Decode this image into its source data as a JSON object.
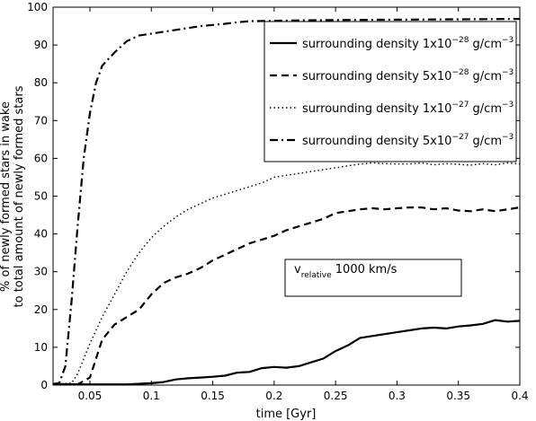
{
  "chart_data": {
    "type": "line",
    "xlabel": "time [Gyr]",
    "ylabel_line1": "% of newly formed stars in wake",
    "ylabel_line2": "to total amount of newly formed stars",
    "xlim": [
      0.02,
      0.4
    ],
    "ylim": [
      0,
      100
    ],
    "xticks": [
      "0.05",
      "0.1",
      "0.15",
      "0.2",
      "0.25",
      "0.3",
      "0.35",
      "0.4"
    ],
    "yticks": [
      "0",
      "10",
      "20",
      "30",
      "40",
      "50",
      "60",
      "70",
      "80",
      "90",
      "100"
    ],
    "legend_position": "top-right",
    "annotation": {
      "v": "v",
      "sub": "relative",
      "text": " 1000 km/s"
    },
    "series": [
      {
        "legend_prefix": "surrounding density 1x10",
        "exponent": "−28",
        "unit": " g/cm",
        "unit_exp": "−3",
        "style": "solid",
        "points": [
          [
            0.02,
            0.3
          ],
          [
            0.05,
            0.2
          ],
          [
            0.08,
            0.2
          ],
          [
            0.1,
            0.5
          ],
          [
            0.11,
            0.8
          ],
          [
            0.12,
            1.5
          ],
          [
            0.13,
            1.8
          ],
          [
            0.14,
            2.0
          ],
          [
            0.15,
            2.2
          ],
          [
            0.16,
            2.5
          ],
          [
            0.17,
            3.3
          ],
          [
            0.18,
            3.5
          ],
          [
            0.19,
            4.5
          ],
          [
            0.2,
            4.8
          ],
          [
            0.21,
            4.6
          ],
          [
            0.22,
            5.0
          ],
          [
            0.23,
            6.0
          ],
          [
            0.24,
            7.0
          ],
          [
            0.25,
            9.0
          ],
          [
            0.26,
            10.5
          ],
          [
            0.27,
            12.5
          ],
          [
            0.28,
            13.0
          ],
          [
            0.29,
            13.5
          ],
          [
            0.3,
            14.0
          ],
          [
            0.31,
            14.5
          ],
          [
            0.32,
            15.0
          ],
          [
            0.33,
            15.2
          ],
          [
            0.34,
            15.0
          ],
          [
            0.35,
            15.5
          ],
          [
            0.36,
            15.8
          ],
          [
            0.37,
            16.2
          ],
          [
            0.38,
            17.2
          ],
          [
            0.39,
            16.8
          ],
          [
            0.4,
            17.0
          ]
        ]
      },
      {
        "legend_prefix": "surrounding density 5x10",
        "exponent": "−28",
        "unit": " g/cm",
        "unit_exp": "−3",
        "style": "dashed",
        "points": [
          [
            0.02,
            0.2
          ],
          [
            0.04,
            0.2
          ],
          [
            0.05,
            2.0
          ],
          [
            0.055,
            7.0
          ],
          [
            0.06,
            12.0
          ],
          [
            0.07,
            16.0
          ],
          [
            0.08,
            18.0
          ],
          [
            0.09,
            20.0
          ],
          [
            0.1,
            24.0
          ],
          [
            0.11,
            27.0
          ],
          [
            0.12,
            28.5
          ],
          [
            0.13,
            29.5
          ],
          [
            0.14,
            31.0
          ],
          [
            0.15,
            33.0
          ],
          [
            0.16,
            34.5
          ],
          [
            0.17,
            36.0
          ],
          [
            0.18,
            37.5
          ],
          [
            0.19,
            38.5
          ],
          [
            0.2,
            39.5
          ],
          [
            0.21,
            41.0
          ],
          [
            0.22,
            42.0
          ],
          [
            0.23,
            43.0
          ],
          [
            0.24,
            44.0
          ],
          [
            0.25,
            45.5
          ],
          [
            0.26,
            46.0
          ],
          [
            0.27,
            46.5
          ],
          [
            0.28,
            46.8
          ],
          [
            0.29,
            46.5
          ],
          [
            0.3,
            46.8
          ],
          [
            0.31,
            47.0
          ],
          [
            0.32,
            47.0
          ],
          [
            0.33,
            46.5
          ],
          [
            0.34,
            46.8
          ],
          [
            0.35,
            46.2
          ],
          [
            0.36,
            46.0
          ],
          [
            0.37,
            46.5
          ],
          [
            0.38,
            46.0
          ],
          [
            0.39,
            46.5
          ],
          [
            0.4,
            47.0
          ]
        ]
      },
      {
        "legend_prefix": "surrounding density 1x10",
        "exponent": "−27",
        "unit": " g/cm",
        "unit_exp": "−3",
        "style": "dotted",
        "points": [
          [
            0.02,
            0.2
          ],
          [
            0.035,
            0.5
          ],
          [
            0.04,
            3.0
          ],
          [
            0.05,
            11.0
          ],
          [
            0.06,
            18.0
          ],
          [
            0.07,
            24.0
          ],
          [
            0.08,
            30.0
          ],
          [
            0.09,
            35.0
          ],
          [
            0.1,
            39.0
          ],
          [
            0.11,
            42.0
          ],
          [
            0.12,
            44.5
          ],
          [
            0.13,
            46.5
          ],
          [
            0.14,
            48.0
          ],
          [
            0.15,
            49.5
          ],
          [
            0.16,
            50.5
          ],
          [
            0.17,
            51.5
          ],
          [
            0.18,
            52.5
          ],
          [
            0.19,
            53.5
          ],
          [
            0.2,
            55.0
          ],
          [
            0.21,
            55.5
          ],
          [
            0.22,
            56.0
          ],
          [
            0.23,
            56.5
          ],
          [
            0.24,
            57.0
          ],
          [
            0.25,
            57.5
          ],
          [
            0.26,
            58.0
          ],
          [
            0.27,
            58.5
          ],
          [
            0.28,
            58.8
          ],
          [
            0.29,
            58.6
          ],
          [
            0.3,
            58.5
          ],
          [
            0.31,
            58.5
          ],
          [
            0.32,
            58.8
          ],
          [
            0.33,
            58.3
          ],
          [
            0.34,
            58.6
          ],
          [
            0.35,
            58.4
          ],
          [
            0.36,
            58.2
          ],
          [
            0.37,
            58.6
          ],
          [
            0.38,
            58.3
          ],
          [
            0.39,
            58.8
          ],
          [
            0.4,
            58.5
          ]
        ]
      },
      {
        "legend_prefix": "surrounding density 5x10",
        "exponent": "−27",
        "unit": " g/cm",
        "unit_exp": "−3",
        "style": "dashdot",
        "points": [
          [
            0.02,
            0.3
          ],
          [
            0.025,
            0.5
          ],
          [
            0.03,
            5.0
          ],
          [
            0.035,
            22.0
          ],
          [
            0.04,
            42.0
          ],
          [
            0.045,
            60.0
          ],
          [
            0.05,
            72.0
          ],
          [
            0.055,
            80.0
          ],
          [
            0.06,
            84.5
          ],
          [
            0.07,
            88.0
          ],
          [
            0.08,
            91.0
          ],
          [
            0.09,
            92.5
          ],
          [
            0.1,
            93.0
          ],
          [
            0.11,
            93.5
          ],
          [
            0.12,
            94.0
          ],
          [
            0.13,
            94.5
          ],
          [
            0.14,
            95.0
          ],
          [
            0.15,
            95.3
          ],
          [
            0.16,
            95.6
          ],
          [
            0.17,
            96.0
          ],
          [
            0.18,
            96.3
          ],
          [
            0.2,
            96.4
          ],
          [
            0.22,
            96.5
          ],
          [
            0.25,
            96.6
          ],
          [
            0.3,
            96.7
          ],
          [
            0.35,
            96.8
          ],
          [
            0.4,
            96.9
          ]
        ]
      }
    ]
  }
}
